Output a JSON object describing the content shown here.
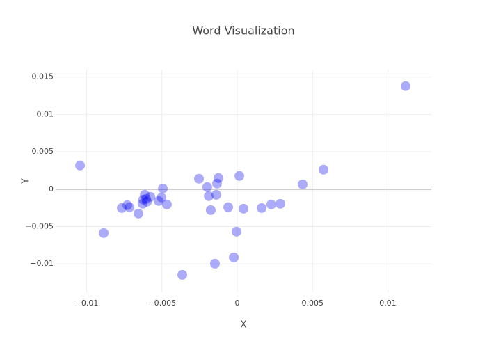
{
  "chart_data": {
    "type": "scatter",
    "title": "Word Visualization",
    "x_label": "X",
    "y_label": "Y",
    "x": [
      0.01118,
      -0.01044,
      -0.00887,
      -0.00767,
      -0.0073,
      -0.00716,
      -0.00656,
      -0.00628,
      -0.00614,
      -0.00624,
      -0.006,
      -0.00577,
      -0.00605,
      -0.00522,
      -0.00503,
      -0.00494,
      -0.00467,
      -0.00365,
      -0.00254,
      -0.00199,
      -0.00189,
      -0.00176,
      -0.00134,
      -0.00125,
      -0.00139,
      -0.00148,
      -0.0006,
      -0.00023,
      -5e-05,
      0.00014,
      0.00042,
      0.00162,
      0.00226,
      0.00286,
      0.00434,
      0.00573
    ],
    "y": [
      0.01379,
      0.00317,
      -0.00587,
      -0.00252,
      -0.00214,
      -0.00242,
      -0.00326,
      -0.00196,
      -0.00075,
      -0.0014,
      -0.00168,
      -0.00103,
      -0.0013,
      -0.00158,
      -0.00112,
      9e-05,
      -0.00205,
      -0.01146,
      0.0014,
      0.00028,
      -0.00093,
      -0.0028,
      0.00075,
      0.00149,
      -0.00075,
      -0.00997,
      -0.00242,
      -0.00913,
      -0.00568,
      0.00177,
      -0.00261,
      -0.00252,
      -0.00205,
      -0.00196,
      0.00065,
      0.00261
    ],
    "color": "rgba(0, 0, 238, 0.33)",
    "xlim": [
      -0.01206,
      0.01289
    ],
    "ylim": [
      -0.0138,
      0.016
    ],
    "xticks": [
      {
        "value": -0.01,
        "label": "−0.01"
      },
      {
        "value": -0.005,
        "label": "−0.005"
      },
      0,
      0.005,
      0.01
    ],
    "yticks": [
      {
        "value": -0.01,
        "label": "−0.01"
      },
      {
        "value": -0.005,
        "label": "−0.005"
      },
      0,
      0.005,
      0.01,
      0.015
    ],
    "grid": true
  }
}
